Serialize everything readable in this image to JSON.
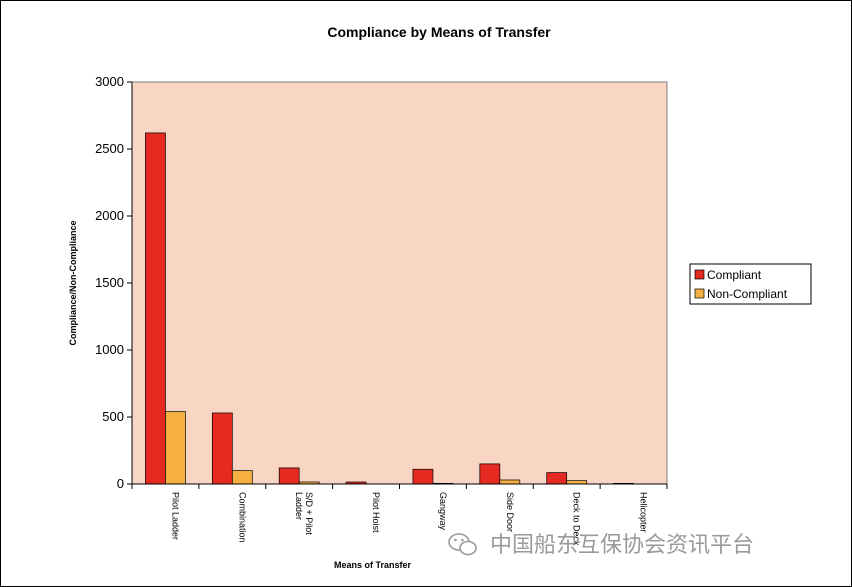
{
  "watermark": {
    "text": "中国船东互保协会资讯平台"
  },
  "colors": {
    "plot_background": "#f9d5c4",
    "compliant": "#e52a22",
    "non_compliant": "#f5b041",
    "axis": "#000000"
  },
  "chart_data": {
    "type": "bar",
    "title": "Compliance by Means of Transfer",
    "xlabel": "Means of Transfer",
    "ylabel": "Compliance/Non-Compliance",
    "ylim": [
      0,
      3000
    ],
    "yticks": [
      0,
      500,
      1000,
      1500,
      2000,
      2500,
      3000
    ],
    "categories": [
      "Pilot Ladder",
      "Combination",
      "S/D + Pilot Ladder",
      "Pilot Hoist",
      "Gangway",
      "Side Door",
      "Deck to Deck",
      "Helicopter"
    ],
    "series": [
      {
        "name": "Compliant",
        "color": "#e52a22",
        "values": [
          2620,
          530,
          120,
          15,
          110,
          150,
          85,
          5
        ]
      },
      {
        "name": "Non-Compliant",
        "color": "#f5b041",
        "values": [
          540,
          100,
          15,
          0,
          5,
          30,
          25,
          0
        ]
      }
    ],
    "grid": false,
    "legend_position": "right"
  }
}
